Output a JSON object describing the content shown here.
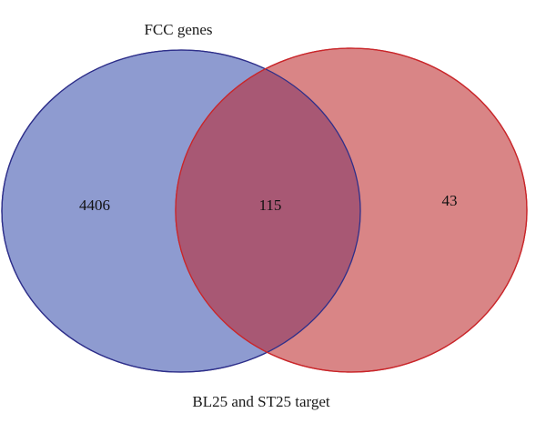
{
  "diagram": {
    "type": "venn",
    "sets": [
      {
        "name": "FCC genes",
        "fill": "#8e9bd0",
        "stroke": "#2e2f8a"
      },
      {
        "name": "BL25 and ST25 target",
        "fill": "#d98586",
        "stroke": "#c9262a"
      }
    ],
    "intersection_fill": "#a85874",
    "counts": {
      "left_only": "4406",
      "both": "115",
      "right_only": "43"
    }
  }
}
